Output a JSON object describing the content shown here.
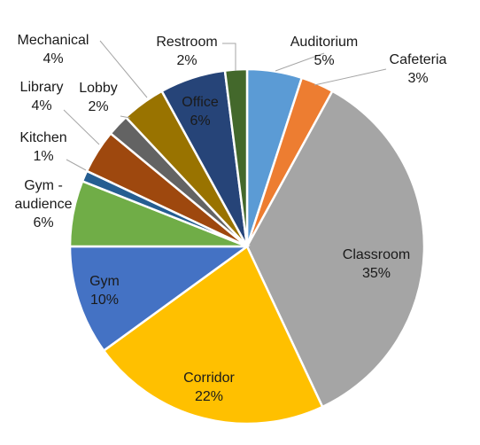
{
  "chart_data": {
    "type": "pie",
    "start_angle_deg": 0,
    "direction": "clockwise",
    "slices": [
      {
        "label": "Auditorium",
        "value": 5,
        "pct_label": "5%",
        "color": "#5b9bd5",
        "label_lines": [
          "Auditorium",
          "5%"
        ]
      },
      {
        "label": "Cafeteria",
        "value": 3,
        "pct_label": "3%",
        "color": "#ed7d31",
        "label_lines": [
          "Cafeteria",
          "3%"
        ]
      },
      {
        "label": "Classroom",
        "value": 35,
        "pct_label": "35%",
        "color": "#a5a5a5",
        "label_lines": [
          "Classroom",
          "35%"
        ]
      },
      {
        "label": "Corridor",
        "value": 22,
        "pct_label": "22%",
        "color": "#ffc000",
        "label_lines": [
          "Corridor",
          "22%"
        ]
      },
      {
        "label": "Gym",
        "value": 10,
        "pct_label": "10%",
        "color": "#4472c4",
        "label_lines": [
          "Gym",
          "10%"
        ]
      },
      {
        "label": "Gym - audience",
        "value": 6,
        "pct_label": "6%",
        "color": "#70ad47",
        "label_lines": [
          "Gym -",
          "audience",
          "6%"
        ]
      },
      {
        "label": "Kitchen",
        "value": 1,
        "pct_label": "1%",
        "color": "#255e91",
        "label_lines": [
          "Kitchen",
          "1%"
        ]
      },
      {
        "label": "Library",
        "value": 4,
        "pct_label": "4%",
        "color": "#9e480e",
        "label_lines": [
          "Library",
          "4%"
        ]
      },
      {
        "label": "Lobby",
        "value": 2,
        "pct_label": "2%",
        "color": "#636363",
        "label_lines": [
          "Lobby",
          "2%"
        ]
      },
      {
        "label": "Mechanical",
        "value": 4,
        "pct_label": "4%",
        "color": "#997300",
        "label_lines": [
          "Mechanical",
          "4%"
        ]
      },
      {
        "label": "Office",
        "value": 6,
        "pct_label": "6%",
        "color": "#264478",
        "label_lines": [
          "Office",
          "6%"
        ]
      },
      {
        "label": "Restroom",
        "value": 2,
        "pct_label": "2%",
        "color": "#43682b",
        "label_lines": [
          "Restroom",
          "2%"
        ]
      }
    ]
  }
}
